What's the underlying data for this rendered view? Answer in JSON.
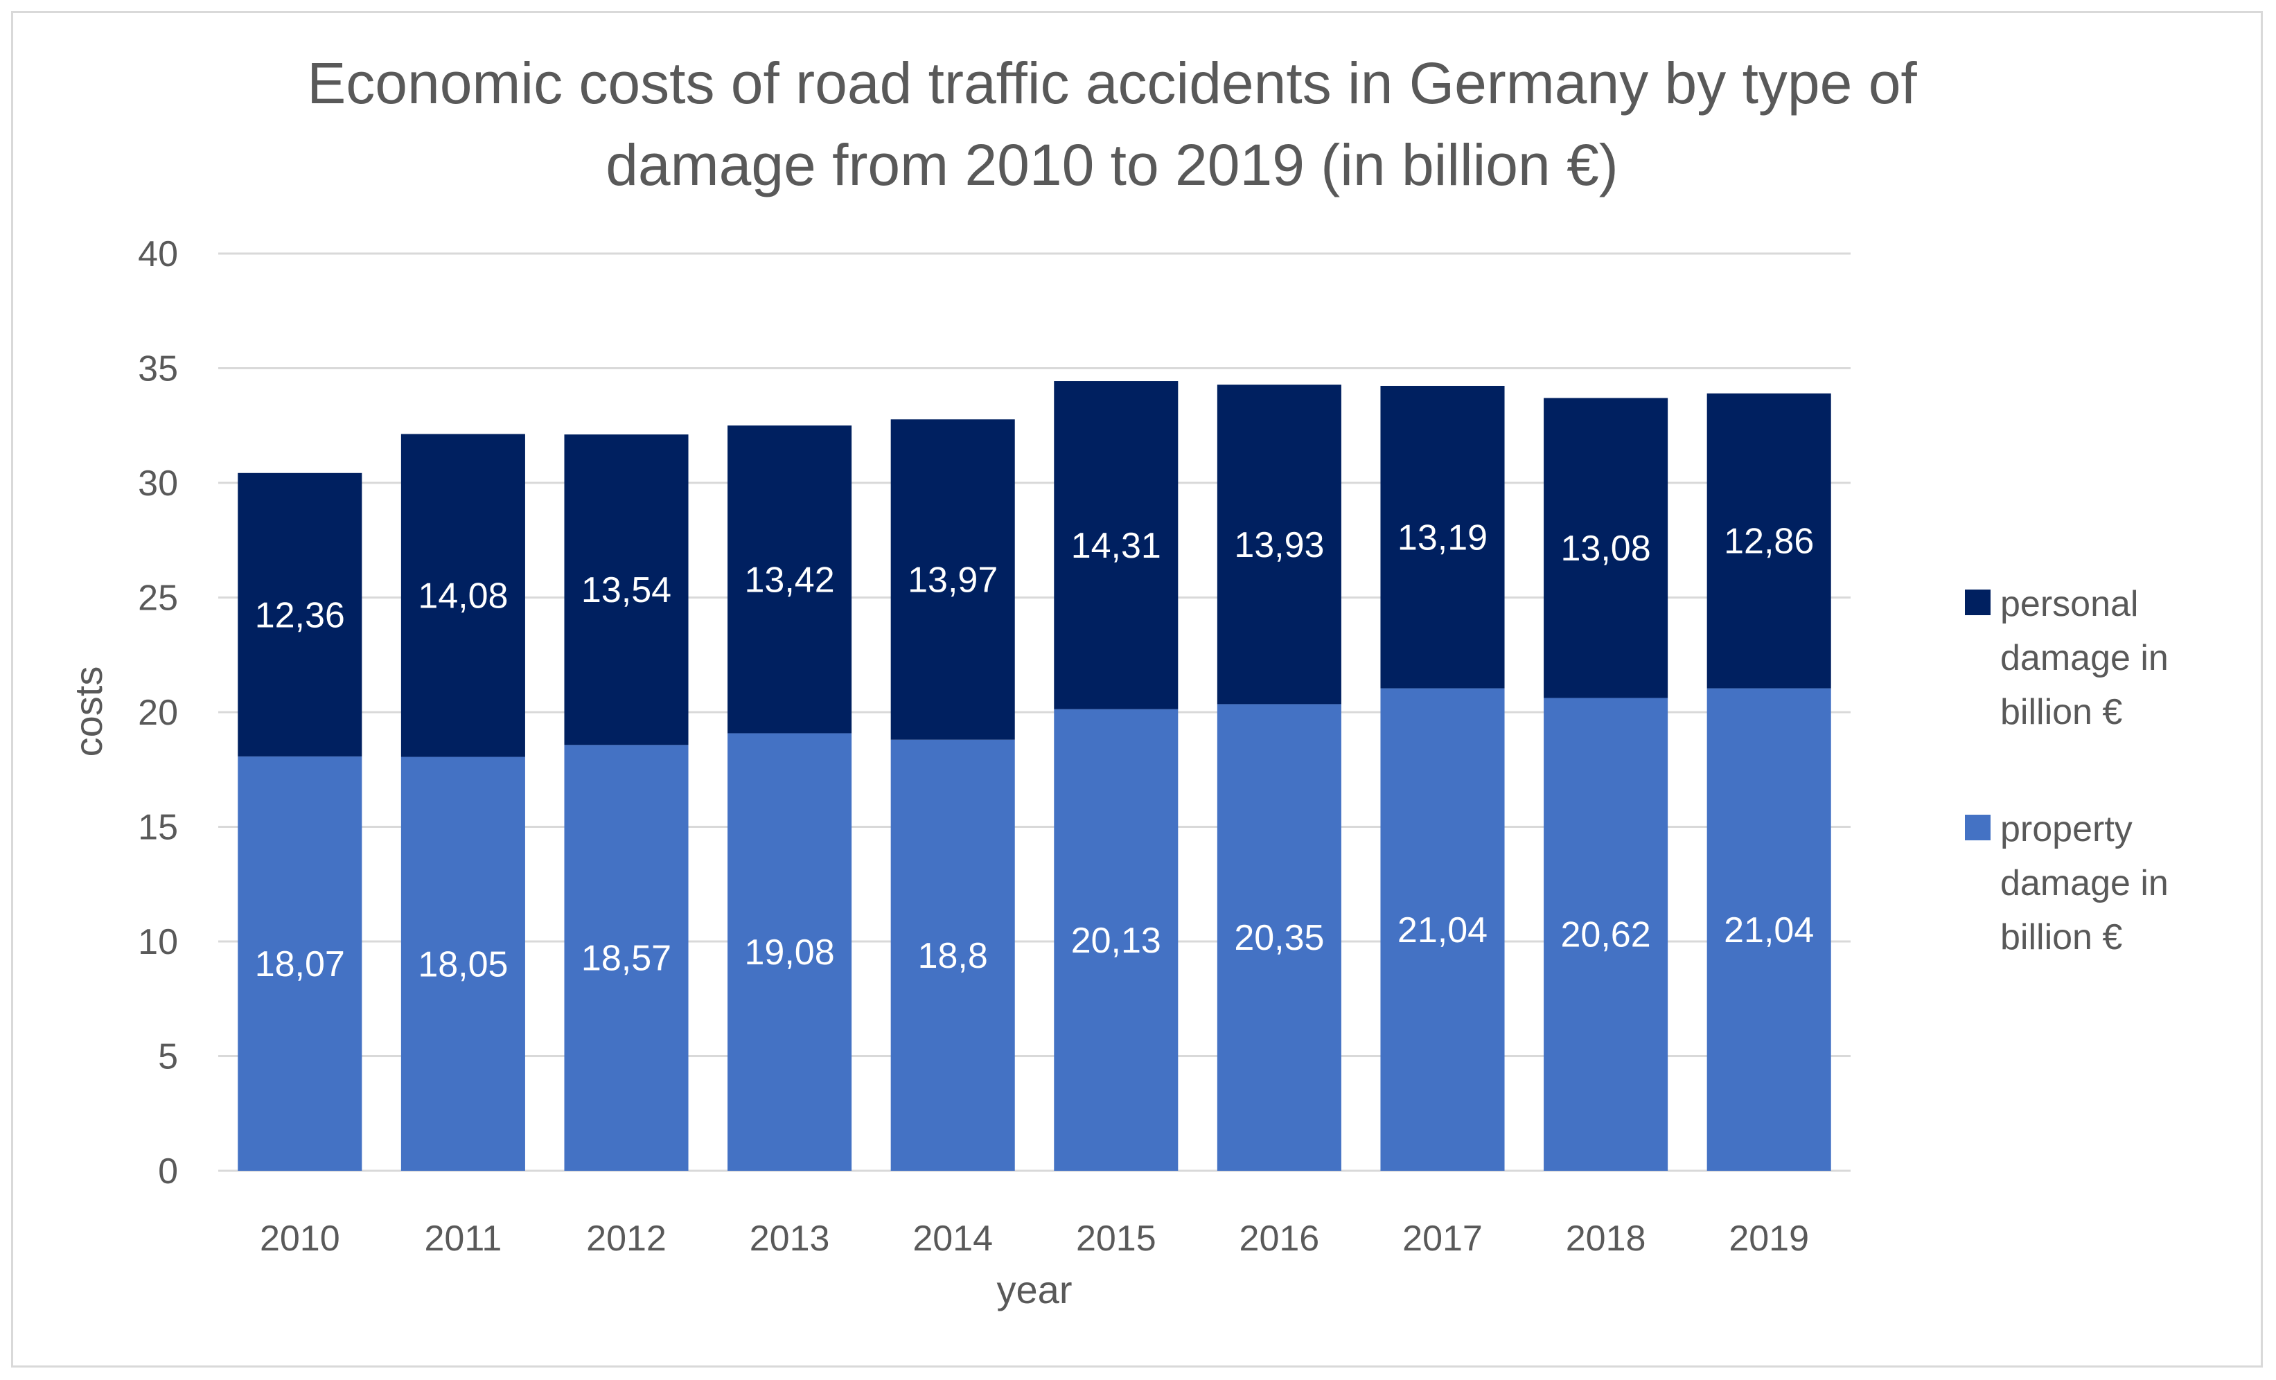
{
  "chart_data": {
    "type": "bar",
    "stacked": true,
    "title_lines": [
      "Economic costs of road traffic accidents in Germany by type of",
      "damage from 2010 to 2019 (in billion €)"
    ],
    "xlabel": "year",
    "ylabel": "costs",
    "ylim": [
      0,
      40
    ],
    "yticks": [
      "0",
      "5",
      "10",
      "15",
      "20",
      "25",
      "30",
      "35",
      "40"
    ],
    "categories": [
      "2010",
      "2011",
      "2012",
      "2013",
      "2014",
      "2015",
      "2016",
      "2017",
      "2018",
      "2019"
    ],
    "grid": true,
    "legend_position": "right",
    "series": [
      {
        "name": "property damage in billion €",
        "legend_lines": [
          "property",
          "damage in",
          "billion €"
        ],
        "color": "#4472c4",
        "values": [
          18.07,
          18.05,
          18.57,
          19.08,
          18.8,
          20.13,
          20.35,
          21.04,
          20.62,
          21.04
        ],
        "labels": [
          "18,07",
          "18,05",
          "18,57",
          "19,08",
          "18,8",
          "20,13",
          "20,35",
          "21,04",
          "20,62",
          "21,04"
        ]
      },
      {
        "name": "personal damage in billion €",
        "legend_lines": [
          "personal",
          "damage in",
          "billion €"
        ],
        "color": "#002060",
        "values": [
          12.36,
          14.08,
          13.54,
          13.42,
          13.97,
          14.31,
          13.93,
          13.19,
          13.08,
          12.86
        ],
        "labels": [
          "12,36",
          "14,08",
          "13,54",
          "13,42",
          "13,97",
          "14,31",
          "13,93",
          "13,19",
          "13,08",
          "12,86"
        ]
      }
    ]
  }
}
